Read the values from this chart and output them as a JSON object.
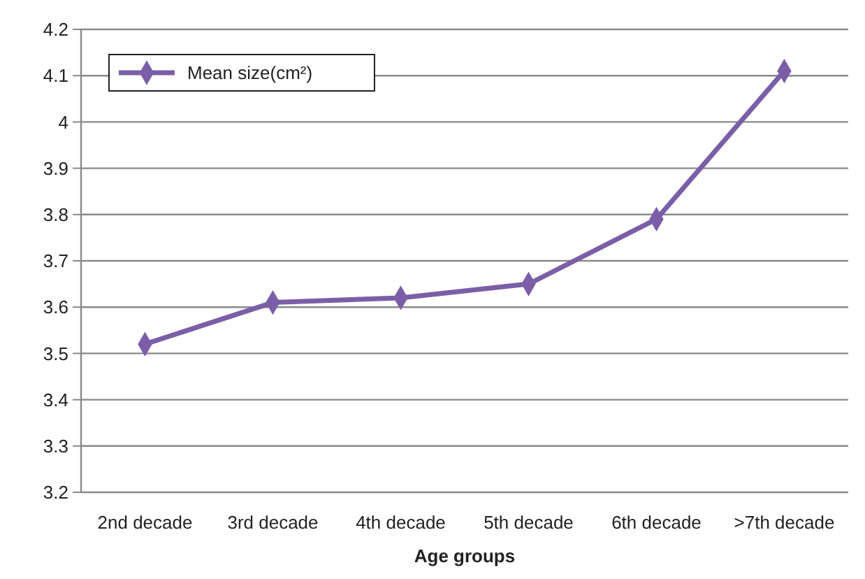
{
  "chart_data": {
    "type": "line",
    "xlabel": "Age groups",
    "categories": [
      "2nd decade",
      "3rd decade",
      "4th decade",
      "5th decade",
      "6th decade",
      ">7th decade"
    ],
    "series": [
      {
        "name": "Mean size(cm²)",
        "color": "#7b5ea7",
        "values": [
          3.52,
          3.61,
          3.62,
          3.65,
          3.79,
          4.11
        ]
      }
    ],
    "ylim": [
      3.2,
      4.2
    ],
    "yticks": [
      3.2,
      3.3,
      3.4,
      3.5,
      3.6,
      3.7,
      3.8,
      3.9,
      {
        "value": 4,
        "label": "4"
      },
      4.1,
      4.2
    ],
    "grid": "y",
    "legend": "top left",
    "marker": "diamond",
    "line_style": "solid"
  }
}
